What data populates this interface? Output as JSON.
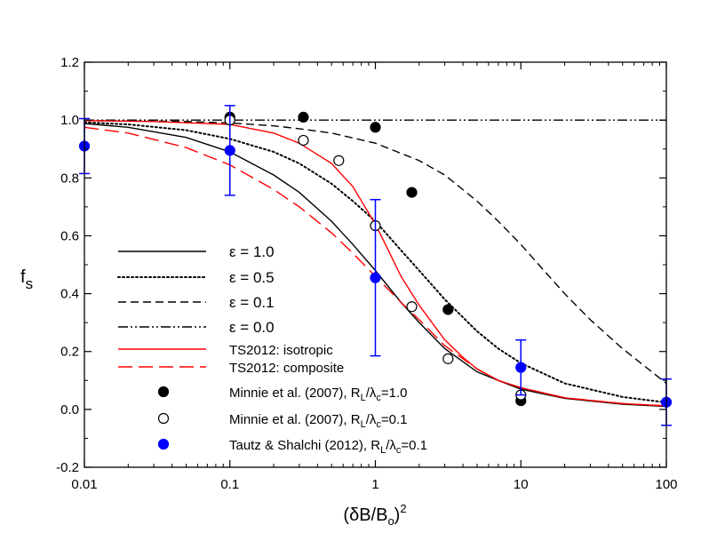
{
  "chart_data": {
    "type": "line",
    "xlabel_base": "(δB/B",
    "xlabel_sub": "o",
    "xlabel_close": ")",
    "xlabel_sup": "2",
    "ylabel_main": "f",
    "ylabel_sub": "s",
    "xscale": "log",
    "xlim": [
      0.01,
      100
    ],
    "ylim": [
      -0.2,
      1.2
    ],
    "xticks": [
      0.01,
      0.1,
      1,
      10,
      100
    ],
    "xtick_labels": [
      "0.01",
      "0.1",
      "1",
      "10",
      "100"
    ],
    "yticks": [
      -0.2,
      0.0,
      0.2,
      0.4,
      0.6,
      0.8,
      1.0,
      1.2
    ],
    "ytick_labels": [
      "-0.2",
      "0.0",
      "0.2",
      "0.4",
      "0.6",
      "0.8",
      "1.0",
      "1.2"
    ],
    "grid": false,
    "legend_position": "lower-left",
    "series": [
      {
        "name": "ε = 1.0",
        "kind": "line",
        "color": "#000000",
        "dash": "solid",
        "x": [
          0.01,
          0.02,
          0.05,
          0.1,
          0.2,
          0.3,
          0.5,
          0.7,
          1,
          1.5,
          2,
          3,
          5,
          7,
          10,
          20,
          50,
          100
        ],
        "y": [
          0.988,
          0.975,
          0.94,
          0.89,
          0.81,
          0.75,
          0.65,
          0.57,
          0.48,
          0.37,
          0.3,
          0.21,
          0.13,
          0.1,
          0.07,
          0.038,
          0.018,
          0.01
        ]
      },
      {
        "name": "ε = 0.5",
        "kind": "line",
        "color": "#000000",
        "dash": "dotted",
        "x": [
          0.01,
          0.02,
          0.05,
          0.1,
          0.2,
          0.3,
          0.5,
          0.7,
          1,
          1.5,
          2,
          3,
          5,
          7,
          10,
          20,
          50,
          100
        ],
        "y": [
          0.992,
          0.985,
          0.965,
          0.935,
          0.89,
          0.85,
          0.78,
          0.72,
          0.65,
          0.55,
          0.48,
          0.38,
          0.27,
          0.21,
          0.16,
          0.09,
          0.043,
          0.024
        ]
      },
      {
        "name": "ε = 0.1",
        "kind": "line",
        "color": "#000000",
        "dash": "dashed",
        "x": [
          0.01,
          0.05,
          0.1,
          0.2,
          0.3,
          0.5,
          1,
          2,
          3,
          5,
          7,
          10,
          15,
          20,
          30,
          50,
          100
        ],
        "y": [
          0.998,
          0.995,
          0.99,
          0.98,
          0.97,
          0.955,
          0.92,
          0.86,
          0.81,
          0.72,
          0.65,
          0.57,
          0.47,
          0.4,
          0.31,
          0.21,
          0.09
        ]
      },
      {
        "name": "ε = 0.0",
        "kind": "line",
        "color": "#000000",
        "dash": "dashdotdot",
        "x": [
          0.01,
          100
        ],
        "y": [
          1.0,
          1.0
        ]
      },
      {
        "name": "TS2012: isotropic",
        "kind": "line",
        "color": "#ff0000",
        "dash": "solid",
        "x": [
          0.01,
          0.03,
          0.1,
          0.2,
          0.3,
          0.5,
          0.7,
          1,
          1.2,
          1.5,
          2,
          3,
          4,
          5,
          7,
          10,
          20,
          50,
          100
        ],
        "y": [
          0.998,
          0.995,
          0.985,
          0.955,
          0.92,
          0.85,
          0.77,
          0.64,
          0.56,
          0.46,
          0.36,
          0.24,
          0.18,
          0.14,
          0.1,
          0.075,
          0.04,
          0.02,
          0.012
        ]
      },
      {
        "name": "TS2012: composite",
        "kind": "line",
        "color": "#ff0000",
        "dash": "longdash",
        "x": [
          0.01,
          0.02,
          0.05,
          0.1,
          0.2,
          0.3,
          0.5,
          0.7,
          1,
          1.5,
          2,
          3,
          5,
          7,
          10,
          20,
          50,
          100
        ],
        "y": [
          0.975,
          0.955,
          0.905,
          0.845,
          0.76,
          0.7,
          0.61,
          0.54,
          0.46,
          0.37,
          0.31,
          0.22,
          0.14,
          0.1,
          0.075,
          0.04,
          0.02,
          0.012
        ]
      },
      {
        "name": "Minnie et al. (2007), R",
        "sub1": "L",
        "mid": "/λ",
        "sub2": "c",
        "tail": "=1.0",
        "kind": "scatter",
        "marker": "filled",
        "color": "#000000",
        "x": [
          0.1,
          0.32,
          1.0,
          1.78,
          3.16,
          10
        ],
        "y": [
          1.01,
          1.01,
          0.975,
          0.75,
          0.345,
          0.03
        ]
      },
      {
        "name": "Minnie et al. (2007), R",
        "sub1": "L",
        "mid": "/λ",
        "sub2": "c",
        "tail": "=0.1",
        "kind": "scatter",
        "marker": "open",
        "color": "#000000",
        "x": [
          0.1,
          0.32,
          0.56,
          1.0,
          1.78,
          3.16,
          10
        ],
        "y": [
          1.0,
          0.93,
          0.86,
          0.635,
          0.355,
          0.175,
          0.05
        ]
      },
      {
        "name": "Tautz & Shalchi (2012), R",
        "sub1": "L",
        "mid": "/λ",
        "sub2": "c",
        "tail": "=0.1",
        "kind": "scatter",
        "marker": "filled",
        "color": "#0000ff",
        "x": [
          0.01,
          0.1,
          1.0,
          10,
          100
        ],
        "y": [
          0.91,
          0.895,
          0.455,
          0.145,
          0.025
        ],
        "err": [
          0.095,
          0.155,
          0.27,
          0.095,
          0.08
        ]
      }
    ]
  }
}
